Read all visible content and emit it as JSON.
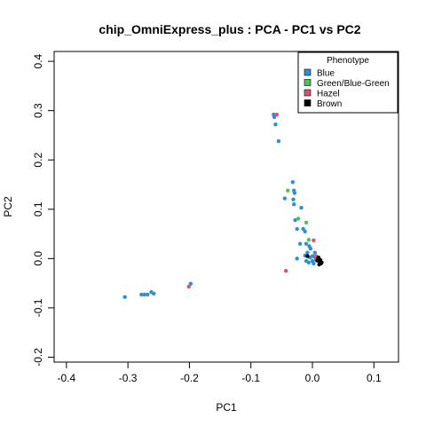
{
  "chart_data": {
    "type": "scatter",
    "title": "chip_OmniExpress_plus : PCA - PC1 vs PC2",
    "xlabel": "PC1",
    "ylabel": "PC2",
    "xlim": [
      -0.42,
      0.14
    ],
    "ylim": [
      -0.21,
      0.42
    ],
    "x_ticks": [
      -0.4,
      -0.3,
      -0.2,
      -0.1,
      0.0,
      0.1
    ],
    "x_tick_labels": [
      "-0.4",
      "-0.3",
      "-0.2",
      "-0.1",
      "0.0",
      "0.1"
    ],
    "y_ticks": [
      -0.2,
      -0.1,
      0.0,
      0.1,
      0.2,
      0.3,
      0.4
    ],
    "y_tick_labels": [
      "-0.2",
      "-0.1",
      "0.0",
      "0.1",
      "0.2",
      "0.3",
      "0.4"
    ],
    "grid": false,
    "legend": {
      "title": "Phenotype",
      "position": "top-right",
      "entries": [
        "Blue",
        "Green/Blue-Green",
        "Hazel",
        "Brown"
      ]
    },
    "series": [
      {
        "name": "Blue",
        "color": "#2e8fd6",
        "points": [
          [
            -0.305,
            -0.078
          ],
          [
            -0.278,
            -0.073
          ],
          [
            -0.273,
            -0.073
          ],
          [
            -0.268,
            -0.073
          ],
          [
            -0.262,
            -0.068
          ],
          [
            -0.258,
            -0.071
          ],
          [
            -0.198,
            -0.051
          ],
          [
            -0.063,
            0.292
          ],
          [
            -0.062,
            0.287
          ],
          [
            -0.06,
            0.272
          ],
          [
            -0.055,
            0.238
          ],
          [
            -0.045,
            0.122
          ],
          [
            -0.032,
            0.155
          ],
          [
            -0.03,
            0.138
          ],
          [
            -0.029,
            0.133
          ],
          [
            -0.031,
            0.12
          ],
          [
            -0.03,
            0.11
          ],
          [
            -0.028,
            0.078
          ],
          [
            -0.025,
            0.06
          ],
          [
            -0.018,
            0.103
          ],
          [
            -0.015,
            0.06
          ],
          [
            -0.012,
            0.055
          ],
          [
            -0.01,
            0.03
          ],
          [
            -0.008,
            0.012
          ],
          [
            -0.02,
            0.03
          ],
          [
            -0.025,
            0.0
          ],
          [
            -0.01,
            -0.005
          ],
          [
            -0.005,
            0.025
          ],
          [
            -0.003,
            0.02
          ],
          [
            0.0,
            0.005
          ],
          [
            0.002,
            -0.01
          ],
          [
            0.004,
            0.012
          ],
          [
            0.006,
            -0.003
          ],
          [
            -0.004,
            0.002
          ],
          [
            0.0,
            -0.005
          ],
          [
            -0.012,
            0.006
          ],
          [
            -0.006,
            -0.008
          ],
          [
            0.003,
            0.004
          ]
        ]
      },
      {
        "name": "Green/Blue-Green",
        "color": "#4ec24e",
        "points": [
          [
            -0.04,
            0.138
          ],
          [
            -0.023,
            0.081
          ],
          [
            -0.01,
            0.073
          ],
          [
            -0.006,
            0.038
          ]
        ]
      },
      {
        "name": "Hazel",
        "color": "#e0506e",
        "points": [
          [
            -0.201,
            -0.057
          ],
          [
            -0.058,
            0.292
          ],
          [
            -0.043,
            -0.025
          ],
          [
            0.002,
            0.037
          ],
          [
            0.005,
            0.002
          ],
          [
            0.012,
            -0.008
          ],
          [
            0.01,
            -0.002
          ],
          [
            0.006,
            0.005
          ]
        ]
      },
      {
        "name": "Brown",
        "color": "#000000",
        "points": [
          [
            -0.008,
            0.005
          ],
          [
            0.01,
            0.002
          ],
          [
            0.012,
            -0.006
          ],
          [
            0.014,
            -0.01
          ],
          [
            0.008,
            -0.004
          ],
          [
            0.011,
            -0.012
          ],
          [
            0.015,
            -0.008
          ],
          [
            0.009,
            0.0
          ],
          [
            0.013,
            -0.003
          ]
        ]
      }
    ]
  }
}
